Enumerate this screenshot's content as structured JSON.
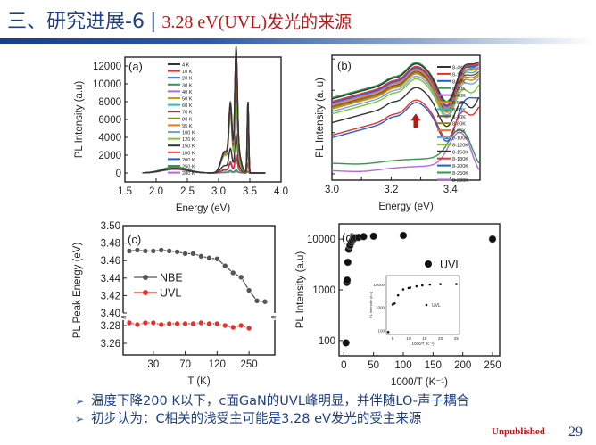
{
  "slide": {
    "title_main": "三、研究进展-6",
    "title_sep": "|",
    "title_sub_latin": "3.28 eV(UVL)",
    "title_sub_cjk": "发光的来源",
    "bullets": [
      "温度下降200 K以下，c面GaN的UVL峰明显，并伴随LO-声子耦合",
      "初步认为：C相关的浅受主可能是3.28 eV发光的受主来源"
    ],
    "bullet_icon": "arrow-bullet-icon",
    "bullet_glyph": "➢",
    "unpublished": "Unpublished",
    "page_number": "29",
    "colors": {
      "title_blue": "#1f3f86",
      "accent_red": "#b81818"
    }
  },
  "chart_data": [
    {
      "id": "a",
      "type": "line",
      "panel_label": "(a)",
      "xlabel": "Energy (eV)",
      "ylabel": "PL Intensity  (a.u)",
      "xlim": [
        1.5,
        4.0
      ],
      "ylim": [
        -1000,
        13000
      ],
      "xticks": [
        "1.5",
        "2.0",
        "2.5",
        "3.0",
        "3.5",
        "4.0"
      ],
      "yticks": [
        "0",
        "2000",
        "4000",
        "6000",
        "8000",
        "10000",
        "12000"
      ],
      "legend_position": "top-center",
      "series": [
        {
          "name": "4 K",
          "color": "#333333",
          "peaks": {
            "p318": 6800,
            "p328": 11500,
            "p347": 8100,
            "dl": 500
          }
        },
        {
          "name": "10 K",
          "color": "#e8312d",
          "peaks": {
            "p318": 6900,
            "p328": 11400,
            "p347": 8000,
            "dl": 520
          }
        },
        {
          "name": "20 K",
          "color": "#1f5fd6",
          "peaks": {
            "p318": 6700,
            "p328": 11200,
            "p347": 7900,
            "dl": 510
          }
        },
        {
          "name": "30 K",
          "color": "#2e9a4b",
          "peaks": {
            "p318": 7000,
            "p328": 11300,
            "p347": 7800,
            "dl": 530
          }
        },
        {
          "name": "40 K",
          "color": "#b36ad9",
          "peaks": {
            "p318": 6600,
            "p328": 11000,
            "p347": 7600,
            "dl": 500
          }
        },
        {
          "name": "50 K",
          "color": "#d99a00",
          "peaks": {
            "p318": 6500,
            "p328": 10800,
            "p347": 7500,
            "dl": 520
          }
        },
        {
          "name": "60 K",
          "color": "#19c3c8",
          "peaks": {
            "p318": 6700,
            "p328": 10600,
            "p347": 7300,
            "dl": 510
          }
        },
        {
          "name": "70 K",
          "color": "#7d4d49",
          "peaks": {
            "p318": 6400,
            "p328": 9000,
            "p347": 6000,
            "dl": 500
          }
        },
        {
          "name": "80 K",
          "color": "#8a8a14",
          "peaks": {
            "p318": 6300,
            "p328": 8700,
            "p347": 5800,
            "dl": 500
          }
        },
        {
          "name": "95 K",
          "color": "#f07a1a",
          "peaks": {
            "p318": 6100,
            "p328": 8400,
            "p347": 5500,
            "dl": 490
          }
        },
        {
          "name": "100 K",
          "color": "#6ea6dc",
          "peaks": {
            "p318": 5900,
            "p328": 8000,
            "p347": 5200,
            "dl": 480
          }
        },
        {
          "name": "120 K",
          "color": "#7ac828",
          "peaks": {
            "p318": 5600,
            "p328": 6000,
            "p347": 4200,
            "dl": 470
          }
        },
        {
          "name": "150 K",
          "color": "#333333",
          "peaks": {
            "p318": 2400,
            "p328": 3500,
            "p347": 3000,
            "dl": 450
          }
        },
        {
          "name": "180 K",
          "color": "#e8312d",
          "peaks": {
            "p318": 1100,
            "p328": 1600,
            "p347": 1100,
            "dl": 430
          }
        },
        {
          "name": "200 K",
          "color": "#1f5fd6",
          "peaks": {
            "p318": 900,
            "p328": 1400,
            "p347": 2900,
            "dl": 420
          }
        },
        {
          "name": "250 K",
          "color": "#2e9a4b",
          "peaks": {
            "p318": 250,
            "p328": 300,
            "p347": 200,
            "dl": 700
          }
        },
        {
          "name": "280 K",
          "color": "#b36ad9",
          "peaks": {
            "p318": 100,
            "p328": 150,
            "p347": 100,
            "dl": 600
          }
        }
      ]
    },
    {
      "id": "b",
      "type": "line",
      "panel_label": "(b)",
      "xlabel": "Energy (eV)",
      "ylabel": "PL Intensity (a. u)",
      "yscale": "log",
      "xlim": [
        3.0,
        3.5
      ],
      "xticks": [
        "3.0",
        "3.2",
        "3.4"
      ],
      "annotation": "red up-arrow marking UVL peak near 3.28 eV",
      "legend_position": "right",
      "series": [
        {
          "name": "8-4K",
          "color": "#333333",
          "level": 0.93,
          "nbe": 0.93
        },
        {
          "name": "8-10K",
          "color": "#e8312d",
          "level": 0.91,
          "nbe": 0.92
        },
        {
          "name": "8-20K",
          "color": "#1f5fd6",
          "level": 0.9,
          "nbe": 0.91
        },
        {
          "name": "8-30K",
          "color": "#2e9a4b",
          "level": 0.94,
          "nbe": 0.9
        },
        {
          "name": "8-40K",
          "color": "#b36ad9",
          "level": 0.89,
          "nbe": 0.89
        },
        {
          "name": "8-50K",
          "color": "#d99a00",
          "level": 0.88,
          "nbe": 0.88
        },
        {
          "name": "8-60K",
          "color": "#19c3c8",
          "level": 0.9,
          "nbe": 0.86
        },
        {
          "name": "8-70K",
          "color": "#7d4d49",
          "level": 0.87,
          "nbe": 0.84
        },
        {
          "name": "8-80K",
          "color": "#8a8a14",
          "level": 0.86,
          "nbe": 0.82
        },
        {
          "name": "8-95K",
          "color": "#f07a1a",
          "level": 0.85,
          "nbe": 0.8
        },
        {
          "name": "8-100K",
          "color": "#6ea6dc",
          "level": 0.83,
          "nbe": 0.77
        },
        {
          "name": "8-120K",
          "color": "#7ac828",
          "level": 0.81,
          "nbe": 0.7
        },
        {
          "name": "8-150K",
          "color": "#333333",
          "level": 0.74,
          "nbe": 0.58
        },
        {
          "name": "8-180K",
          "color": "#e8312d",
          "level": 0.64,
          "nbe": 0.52
        },
        {
          "name": "8-200K",
          "color": "#1f5fd6",
          "level": 0.62,
          "nbe": 0.66
        },
        {
          "name": "8-250K",
          "color": "#2e9a4b",
          "level": 0.14,
          "nbe": 0.36
        },
        {
          "name": "8-280K",
          "color": "#b36ad9",
          "level": 0.08,
          "nbe": 0.34
        }
      ]
    },
    {
      "id": "c",
      "type": "line",
      "panel_label": "(c)",
      "xlabel": "T (K)",
      "ylabel": "PL Peak Energy (eV)",
      "axis_break": true,
      "xticks": [
        "30",
        "70",
        "120",
        "250"
      ],
      "yticks_upper": [
        "3.40",
        "3.42",
        "3.44",
        "3.46",
        "3.48",
        "3.50"
      ],
      "yticks_lower": [
        "3.26",
        "3.28"
      ],
      "legend_position": "middle-left",
      "series": [
        {
          "name": "NBE",
          "color": "#555555",
          "values": [
            3.471,
            3.472,
            3.471,
            3.471,
            3.472,
            3.471,
            3.47,
            3.468,
            3.468,
            3.465,
            3.463,
            3.462,
            3.454,
            3.446,
            3.441,
            3.426,
            3.414,
            3.413
          ]
        },
        {
          "name": "UVL",
          "color": "#e8312d",
          "values": [
            3.283,
            3.281,
            3.283,
            3.283,
            3.281,
            3.282,
            3.282,
            3.282,
            3.282,
            3.283,
            3.282,
            3.282,
            3.28,
            3.278,
            3.28,
            3.277
          ]
        }
      ]
    },
    {
      "id": "d",
      "type": "scatter",
      "panel_label": "(d)",
      "xlabel": "1000/T (K⁻¹)",
      "ylabel": "PL Intensity (a.u)",
      "yscale": "log",
      "xlim": [
        -8,
        262
      ],
      "ylim": [
        50,
        20000
      ],
      "xticks": [
        "0",
        "50",
        "100",
        "150",
        "200",
        "250"
      ],
      "yticks": [
        "100",
        "1000",
        "10000"
      ],
      "legend": "UVL",
      "legend_position": "right",
      "series": [
        {
          "name": "UVL",
          "color": "#111111",
          "x": [
            3.6,
            5.0,
            5.6,
            6.7,
            8.3,
            10.0,
            10.5,
            12.5,
            14.3,
            16.7,
            20.0,
            25.0,
            33.3,
            50.0,
            100.0,
            250.0
          ],
          "y": [
            90,
            1400,
            1550,
            3500,
            6300,
            7300,
            7600,
            8600,
            9400,
            10200,
            10700,
            10800,
            11200,
            11400,
            11800,
            10000
          ]
        }
      ],
      "inset": {
        "xlabel": "1000/T (K⁻¹)",
        "ylabel": "PL Intensity (a.u)",
        "xlim": [
          3,
          26
        ],
        "xticks": [
          "5",
          "10",
          "15",
          "20",
          "25"
        ],
        "yticks": [
          "100",
          "1000",
          "10000"
        ],
        "legend": "UVL",
        "x": [
          3.6,
          5.0,
          5.6,
          6.7,
          8.3,
          10.0,
          10.5,
          12.5,
          14.3,
          16.7,
          20.0,
          25.0
        ],
        "y": [
          90,
          1400,
          1550,
          3500,
          6300,
          7300,
          7600,
          8600,
          9400,
          10200,
          10700,
          10800
        ]
      }
    }
  ]
}
